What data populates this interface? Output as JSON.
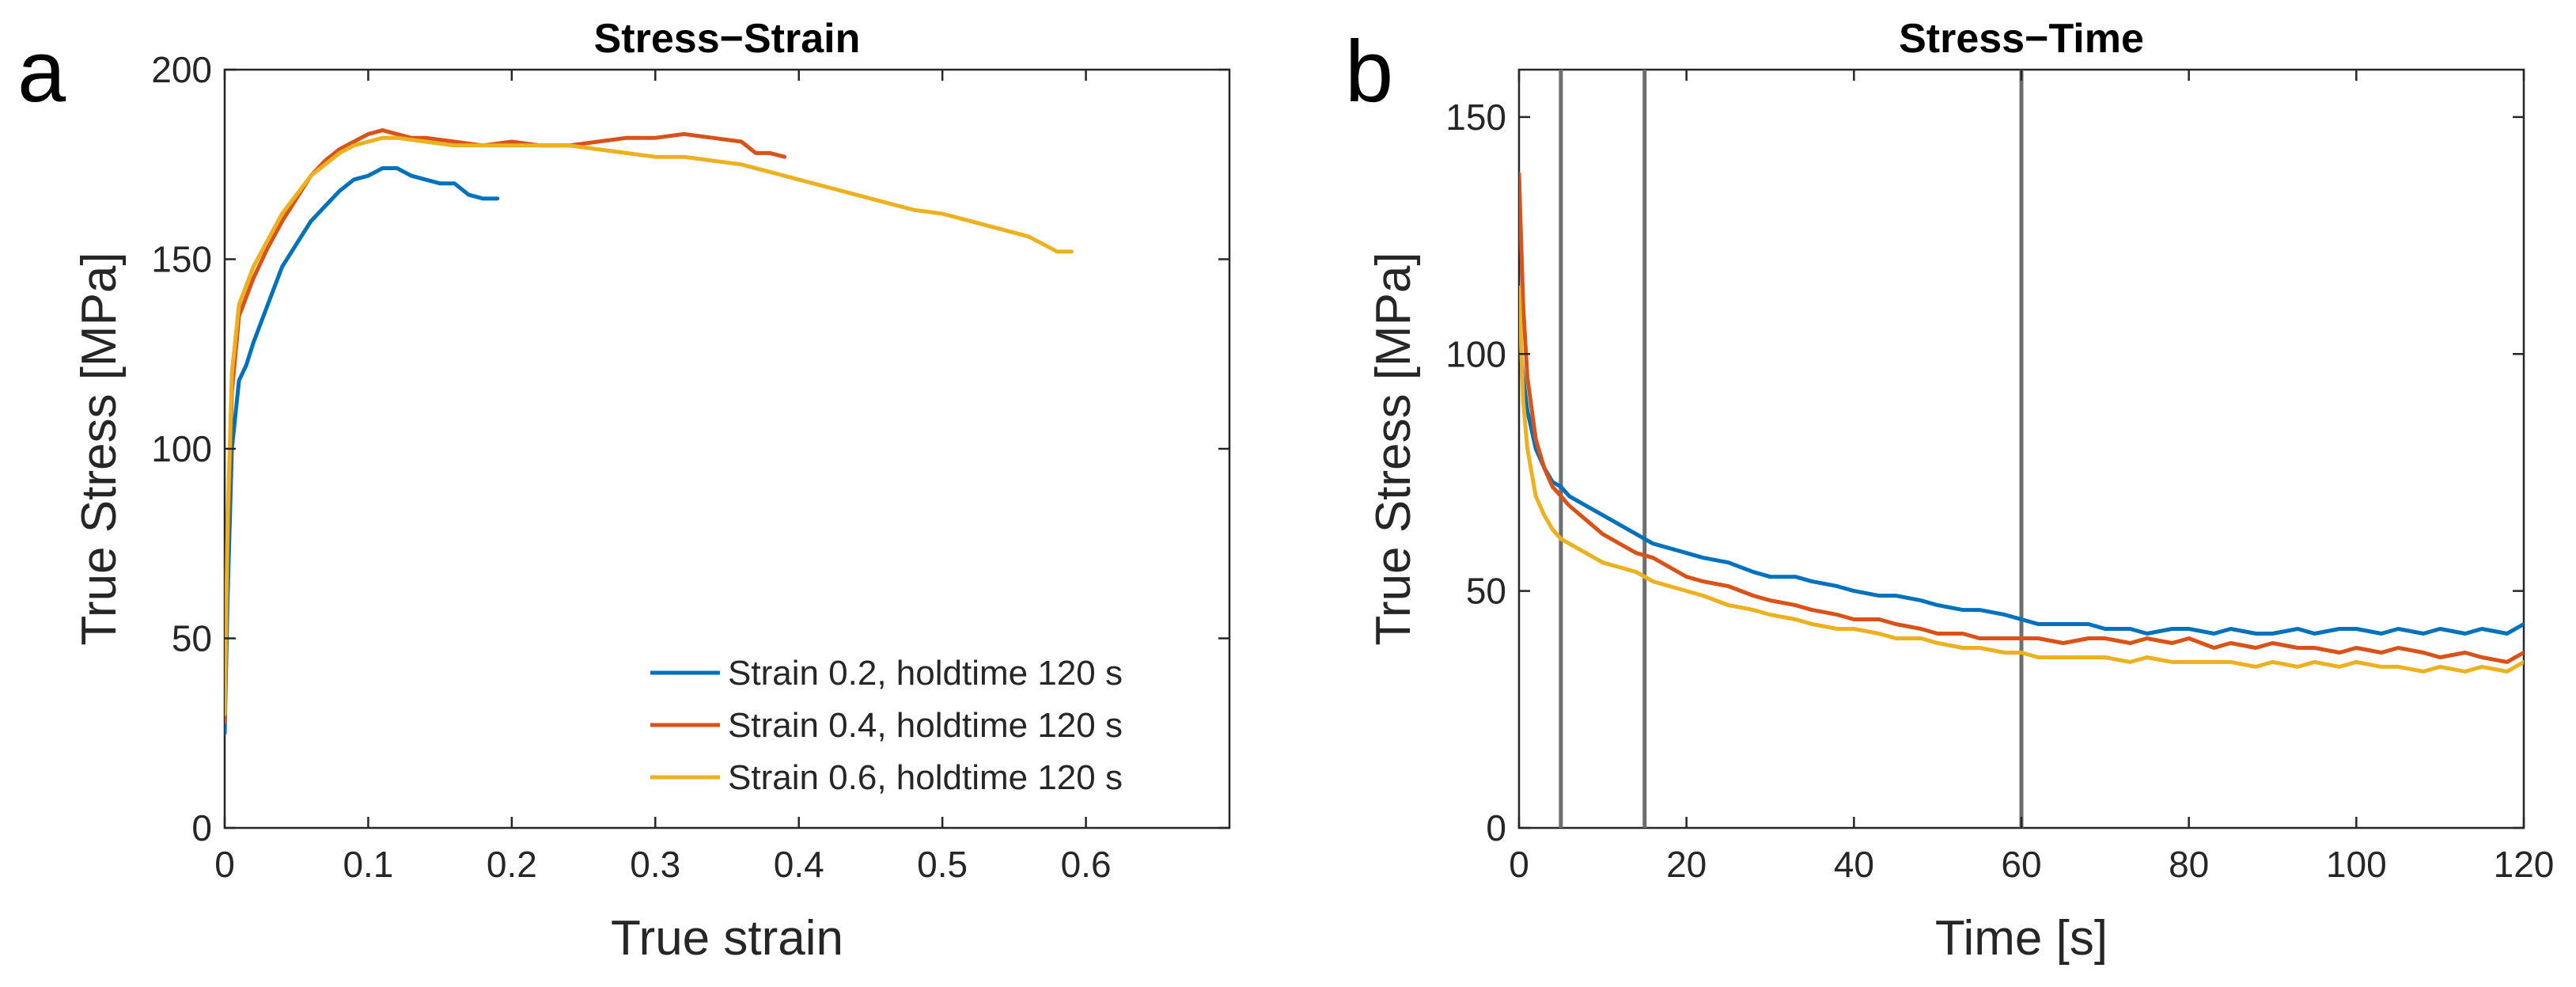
{
  "panels": [
    {
      "letter": "a"
    },
    {
      "letter": "b"
    }
  ],
  "chart_data": [
    {
      "type": "line",
      "title": "Stress−Strain",
      "xlabel": "True strain",
      "ylabel": "True Stress [MPa]",
      "xlim": [
        0,
        0.7
      ],
      "ylim": [
        0,
        200
      ],
      "xticks": [
        0,
        0.1,
        0.2,
        0.3,
        0.4,
        0.5,
        0.6
      ],
      "xtick_labels": [
        "0",
        "0.1",
        "0.2",
        "0.3",
        "0.4",
        "0.5",
        "0.6"
      ],
      "yticks": [
        0,
        50,
        100,
        150,
        200
      ],
      "ytick_labels": [
        "0",
        "50",
        "100",
        "150",
        "200"
      ],
      "grid": false,
      "legend_position": "bottom-right",
      "series": [
        {
          "name": "Strain 0.2, holdtime 120 s",
          "color": "#0072BD",
          "x": [
            0,
            0.002,
            0.005,
            0.01,
            0.015,
            0.02,
            0.03,
            0.04,
            0.05,
            0.06,
            0.07,
            0.08,
            0.09,
            0.1,
            0.11,
            0.12,
            0.13,
            0.14,
            0.15,
            0.16,
            0.17,
            0.18,
            0.19
          ],
          "y": [
            25,
            60,
            100,
            118,
            122,
            128,
            138,
            148,
            154,
            160,
            164,
            168,
            171,
            172,
            174,
            174,
            172,
            171,
            170,
            170,
            167,
            166,
            166
          ]
        },
        {
          "name": "Strain 0.4, holdtime 120 s",
          "color": "#D95319",
          "x": [
            0,
            0.002,
            0.005,
            0.01,
            0.02,
            0.03,
            0.04,
            0.05,
            0.06,
            0.07,
            0.08,
            0.09,
            0.1,
            0.11,
            0.12,
            0.13,
            0.14,
            0.16,
            0.18,
            0.2,
            0.22,
            0.24,
            0.26,
            0.28,
            0.3,
            0.32,
            0.34,
            0.36,
            0.37,
            0.38,
            0.39
          ],
          "y": [
            28,
            75,
            115,
            135,
            145,
            153,
            160,
            166,
            172,
            176,
            179,
            181,
            183,
            184,
            183,
            182,
            182,
            181,
            180,
            181,
            180,
            180,
            181,
            182,
            182,
            183,
            182,
            181,
            178,
            178,
            177
          ]
        },
        {
          "name": "Strain 0.6, holdtime 120 s",
          "color": "#EDB120",
          "x": [
            0,
            0.002,
            0.005,
            0.01,
            0.02,
            0.03,
            0.04,
            0.05,
            0.06,
            0.07,
            0.08,
            0.09,
            0.1,
            0.11,
            0.12,
            0.14,
            0.16,
            0.18,
            0.2,
            0.22,
            0.24,
            0.26,
            0.28,
            0.3,
            0.32,
            0.34,
            0.36,
            0.38,
            0.4,
            0.42,
            0.44,
            0.46,
            0.48,
            0.5,
            0.52,
            0.54,
            0.56,
            0.57,
            0.58,
            0.59
          ],
          "y": [
            30,
            80,
            120,
            138,
            148,
            155,
            162,
            167,
            172,
            175,
            178,
            180,
            181,
            182,
            182,
            181,
            180,
            180,
            180,
            180,
            180,
            179,
            178,
            177,
            177,
            176,
            175,
            173,
            171,
            169,
            167,
            165,
            163,
            162,
            160,
            158,
            156,
            154,
            152,
            152
          ]
        }
      ]
    },
    {
      "type": "line",
      "title": "Stress−Time",
      "xlabel": "Time [s]",
      "ylabel": "True Stress [MPa]",
      "xlim": [
        0,
        120
      ],
      "ylim": [
        0,
        160
      ],
      "xticks": [
        0,
        20,
        40,
        60,
        80,
        100,
        120
      ],
      "xtick_labels": [
        "0",
        "20",
        "40",
        "60",
        "80",
        "100",
        "120"
      ],
      "yticks": [
        0,
        50,
        100,
        150
      ],
      "ytick_labels": [
        "0",
        "50",
        "100",
        "150"
      ],
      "grid": false,
      "vertical_lines": [
        5,
        15,
        60
      ],
      "vertical_line_color": "#6e6e6e",
      "series": [
        {
          "name": "Strain 0.2, holdtime 120 s",
          "color": "#0072BD",
          "x": [
            0,
            0.5,
            1,
            2,
            3,
            4,
            5,
            6,
            8,
            10,
            12,
            14,
            16,
            18,
            20,
            22,
            25,
            28,
            30,
            33,
            35,
            38,
            40,
            43,
            45,
            48,
            50,
            53,
            55,
            58,
            60,
            62,
            65,
            68,
            70,
            73,
            75,
            78,
            80,
            83,
            85,
            88,
            90,
            93,
            95,
            98,
            100,
            103,
            105,
            108,
            110,
            113,
            115,
            118,
            120
          ],
          "y": [
            105,
            95,
            88,
            80,
            76,
            73,
            72,
            70,
            68,
            66,
            64,
            62,
            60,
            59,
            58,
            57,
            56,
            54,
            53,
            53,
            52,
            51,
            50,
            49,
            49,
            48,
            47,
            46,
            46,
            45,
            44,
            43,
            43,
            43,
            42,
            42,
            41,
            42,
            42,
            41,
            42,
            41,
            41,
            42,
            41,
            42,
            42,
            41,
            42,
            41,
            42,
            41,
            42,
            41,
            43
          ]
        },
        {
          "name": "Strain 0.4, holdtime 120 s",
          "color": "#D95319",
          "x": [
            0,
            0.5,
            1,
            2,
            3,
            4,
            5,
            6,
            8,
            10,
            12,
            14,
            16,
            18,
            20,
            22,
            25,
            28,
            30,
            33,
            35,
            38,
            40,
            43,
            45,
            48,
            50,
            53,
            55,
            58,
            60,
            62,
            65,
            68,
            70,
            73,
            75,
            78,
            80,
            83,
            85,
            88,
            90,
            93,
            95,
            98,
            100,
            103,
            105,
            108,
            110,
            113,
            115,
            118,
            120
          ],
          "y": [
            138,
            110,
            95,
            82,
            76,
            72,
            70,
            68,
            65,
            62,
            60,
            58,
            57,
            55,
            53,
            52,
            51,
            49,
            48,
            47,
            46,
            45,
            44,
            44,
            43,
            42,
            41,
            41,
            40,
            40,
            40,
            40,
            39,
            40,
            40,
            39,
            40,
            39,
            40,
            38,
            39,
            38,
            39,
            38,
            38,
            37,
            38,
            37,
            38,
            37,
            36,
            37,
            36,
            35,
            37
          ]
        },
        {
          "name": "Strain 0.6, holdtime 120 s",
          "color": "#EDB120",
          "x": [
            0,
            0.5,
            1,
            2,
            3,
            4,
            5,
            6,
            8,
            10,
            12,
            14,
            16,
            18,
            20,
            22,
            25,
            28,
            30,
            33,
            35,
            38,
            40,
            43,
            45,
            48,
            50,
            53,
            55,
            58,
            60,
            62,
            65,
            68,
            70,
            73,
            75,
            78,
            80,
            83,
            85,
            88,
            90,
            93,
            95,
            98,
            100,
            103,
            105,
            108,
            110,
            113,
            115,
            118,
            120
          ],
          "y": [
            114,
            90,
            80,
            70,
            66,
            63,
            61,
            60,
            58,
            56,
            55,
            54,
            52,
            51,
            50,
            49,
            47,
            46,
            45,
            44,
            43,
            42,
            42,
            41,
            40,
            40,
            39,
            38,
            38,
            37,
            37,
            36,
            36,
            36,
            36,
            35,
            36,
            35,
            35,
            35,
            35,
            34,
            35,
            34,
            35,
            34,
            35,
            34,
            34,
            33,
            34,
            33,
            34,
            33,
            35
          ]
        }
      ]
    }
  ]
}
